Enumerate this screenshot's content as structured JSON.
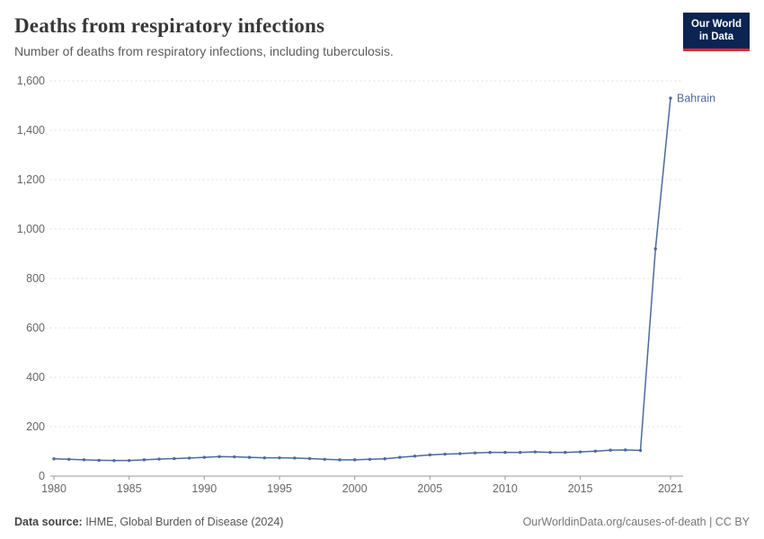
{
  "header": {
    "title": "Deaths from respiratory infections",
    "subtitle": "Number of deaths from respiratory infections, including tuberculosis.",
    "logo": {
      "line1": "Our World",
      "line2": "in Data"
    }
  },
  "chart_data": {
    "type": "line",
    "title": "Deaths from respiratory infections",
    "subtitle": "Number of deaths from respiratory infections, including tuberculosis.",
    "xlabel": "",
    "ylabel": "",
    "ylim": [
      0,
      1600
    ],
    "yticks": [
      0,
      200,
      400,
      600,
      800,
      1000,
      1200,
      1400,
      1600
    ],
    "xticks": [
      1980,
      1985,
      1990,
      1995,
      2000,
      2005,
      2010,
      2015,
      2021
    ],
    "grid": "horizontal-dotted",
    "legend_position": "end-of-line-label",
    "x": [
      1980,
      1981,
      1982,
      1983,
      1984,
      1985,
      1986,
      1987,
      1988,
      1989,
      1990,
      1991,
      1992,
      1993,
      1994,
      1995,
      1996,
      1997,
      1998,
      1999,
      2000,
      2001,
      2002,
      2003,
      2004,
      2005,
      2006,
      2007,
      2008,
      2009,
      2010,
      2011,
      2012,
      2013,
      2014,
      2015,
      2016,
      2017,
      2018,
      2019,
      2020,
      2021
    ],
    "series": [
      {
        "name": "Bahrain",
        "color": "#4C6A9C",
        "values": [
          70,
          68,
          66,
          64,
          63,
          63,
          66,
          69,
          71,
          73,
          76,
          79,
          78,
          76,
          74,
          74,
          73,
          71,
          68,
          66,
          66,
          68,
          70,
          76,
          81,
          86,
          89,
          91,
          94,
          96,
          96,
          96,
          98,
          96,
          96,
          98,
          101,
          105,
          106,
          104,
          920,
          1530
        ]
      }
    ]
  },
  "footer": {
    "source_label": "Data source:",
    "source_value": " IHME, Global Burden of Disease (2024)",
    "right": "OurWorldinData.org/causes-of-death | CC BY"
  },
  "colors": {
    "line": "#4C6A9C",
    "axis": "#999999",
    "grid": "#dcdcdc",
    "tick_text": "#666666",
    "logo_bg": "#0b2451",
    "logo_accent": "#e0263c"
  }
}
